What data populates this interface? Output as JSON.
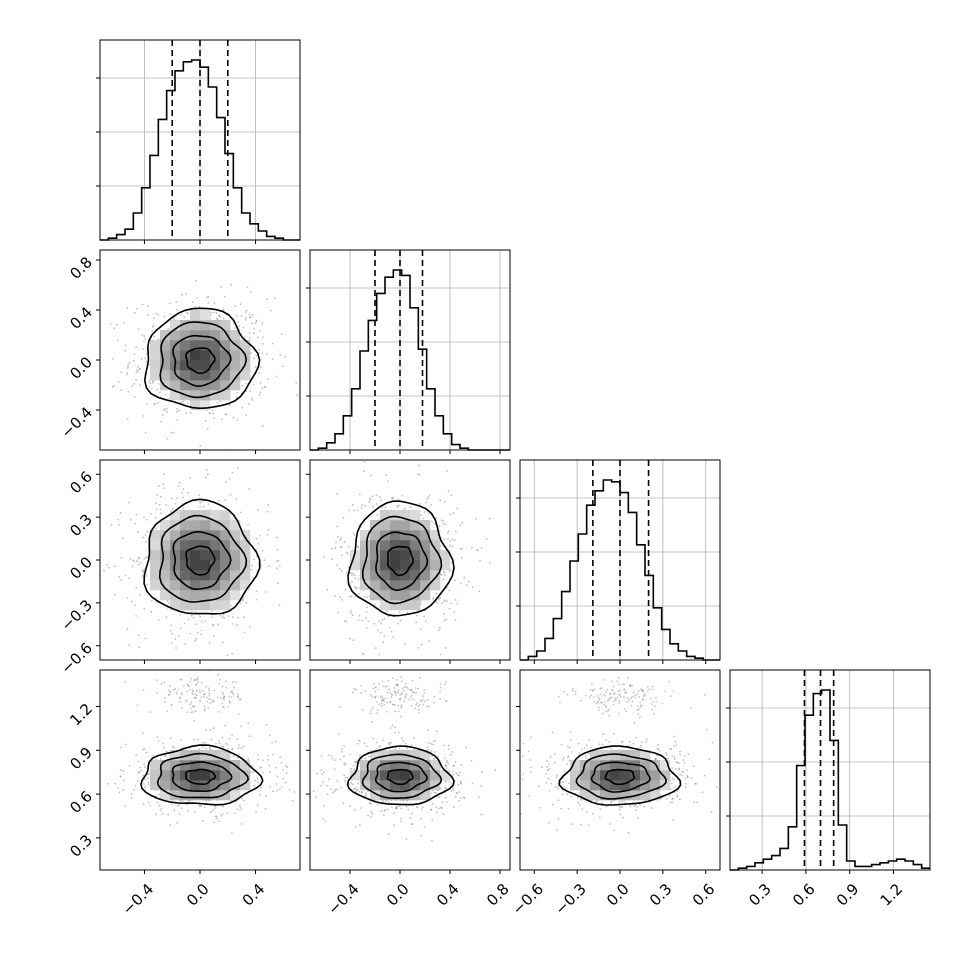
{
  "chart_data": {
    "type": "corner",
    "n_params": 4,
    "colors": {
      "line": "#000000",
      "grid": "#b0b0b0",
      "scatter": "#8c8c8c"
    },
    "params": [
      {
        "index": 0,
        "range": [
          -0.72,
          0.72
        ],
        "ticks": [
          -0.4,
          0.0,
          0.4
        ],
        "tick_labels": [
          "−0.4",
          "0.0",
          "0.4"
        ],
        "quantiles": [
          -0.2,
          0.0,
          0.2
        ]
      },
      {
        "index": 1,
        "range": [
          -0.72,
          0.88
        ],
        "ticks": [
          -0.4,
          0.0,
          0.4,
          0.8
        ],
        "tick_labels": [
          "−0.4",
          "0.0",
          "0.4",
          "0.8"
        ],
        "quantiles": [
          -0.2,
          0.0,
          0.18
        ]
      },
      {
        "index": 2,
        "range": [
          -0.7,
          0.7
        ],
        "ticks": [
          -0.6,
          -0.3,
          0.0,
          0.3,
          0.6
        ],
        "tick_labels": [
          "−0.6",
          "−0.3",
          "0.0",
          "0.3",
          "0.6"
        ],
        "quantiles": [
          -0.19,
          0.0,
          0.2
        ]
      },
      {
        "index": 3,
        "range": [
          0.08,
          1.45
        ],
        "ticks": [
          0.3,
          0.6,
          0.9,
          1.2
        ],
        "tick_labels": [
          "0.3",
          "0.6",
          "0.9",
          "1.2"
        ],
        "quantiles": [
          0.59,
          0.7,
          0.79
        ]
      }
    ],
    "histograms": [
      {
        "param": 0,
        "bin_edges": [
          -0.72,
          -0.66,
          -0.6,
          -0.54,
          -0.48,
          -0.42,
          -0.36,
          -0.3,
          -0.24,
          -0.18,
          -0.12,
          -0.06,
          0.0,
          0.06,
          0.12,
          0.18,
          0.24,
          0.3,
          0.36,
          0.42,
          0.48,
          0.54,
          0.6,
          0.66,
          0.72
        ],
        "counts": [
          0.0,
          0.01,
          0.03,
          0.06,
          0.15,
          0.29,
          0.47,
          0.67,
          0.83,
          0.94,
          0.99,
          1.0,
          0.96,
          0.85,
          0.68,
          0.48,
          0.29,
          0.15,
          0.09,
          0.05,
          0.02,
          0.01,
          0.0,
          0.0
        ]
      },
      {
        "param": 1,
        "bin_edges": [
          -0.72,
          -0.6533,
          -0.5867,
          -0.52,
          -0.4533,
          -0.3867,
          -0.32,
          -0.2533,
          -0.1867,
          -0.12,
          -0.0533,
          0.0133,
          0.08,
          0.1467,
          0.2133,
          0.28,
          0.3467,
          0.4133,
          0.48,
          0.5467,
          0.6133,
          0.68,
          0.7467,
          0.8133,
          0.88
        ],
        "counts": [
          0.0,
          0.01,
          0.04,
          0.09,
          0.19,
          0.34,
          0.55,
          0.72,
          0.87,
          0.96,
          1.0,
          0.97,
          0.79,
          0.56,
          0.34,
          0.19,
          0.09,
          0.03,
          0.01,
          0.0,
          0.0,
          0.0,
          0.0,
          0.0
        ]
      },
      {
        "param": 2,
        "bin_edges": [
          -0.7,
          -0.6417,
          -0.5833,
          -0.525,
          -0.4667,
          -0.4083,
          -0.35,
          -0.2917,
          -0.2333,
          -0.175,
          -0.1167,
          -0.0583,
          0.0,
          0.0583,
          0.1167,
          0.175,
          0.2333,
          0.2917,
          0.35,
          0.4083,
          0.4667,
          0.525,
          0.5833,
          0.6417,
          0.7
        ],
        "counts": [
          0.0,
          0.02,
          0.05,
          0.12,
          0.23,
          0.38,
          0.55,
          0.7,
          0.86,
          0.94,
          1.0,
          0.99,
          0.93,
          0.82,
          0.64,
          0.47,
          0.29,
          0.17,
          0.09,
          0.05,
          0.02,
          0.01,
          0.0,
          0.0
        ]
      },
      {
        "param": 3,
        "bin_edges": [
          0.08,
          0.1371,
          0.1942,
          0.2513,
          0.3083,
          0.3654,
          0.4225,
          0.4796,
          0.5367,
          0.5938,
          0.6508,
          0.7079,
          0.765,
          0.8221,
          0.8792,
          0.9363,
          0.9933,
          1.0504,
          1.1075,
          1.1646,
          1.2217,
          1.2788,
          1.3358,
          1.3929,
          1.45
        ],
        "counts": [
          0.0,
          0.01,
          0.02,
          0.04,
          0.06,
          0.08,
          0.12,
          0.24,
          0.58,
          0.86,
          0.98,
          1.0,
          0.72,
          0.25,
          0.05,
          0.02,
          0.02,
          0.03,
          0.04,
          0.05,
          0.06,
          0.05,
          0.03,
          0.01
        ]
      }
    ],
    "pairs": [
      {
        "x": 0,
        "y": 1,
        "center": [
          0.0,
          0.0
        ],
        "sigma": [
          0.2,
          0.2
        ],
        "rho": 0.0
      },
      {
        "x": 0,
        "y": 2,
        "center": [
          0.0,
          0.0
        ],
        "sigma": [
          0.2,
          0.2
        ],
        "rho": 0.0
      },
      {
        "x": 1,
        "y": 2,
        "center": [
          0.0,
          0.0
        ],
        "sigma": [
          0.2,
          0.2
        ],
        "rho": 0.0
      },
      {
        "x": 0,
        "y": 3,
        "center": [
          0.0,
          0.72
        ],
        "sigma": [
          0.21,
          0.1
        ],
        "rho": 0.0,
        "secondary_cluster": [
          0.0,
          1.27
        ]
      },
      {
        "x": 1,
        "y": 3,
        "center": [
          0.0,
          0.72
        ],
        "sigma": [
          0.2,
          0.1
        ],
        "rho": 0.0,
        "secondary_cluster": [
          0.0,
          1.27
        ]
      },
      {
        "x": 2,
        "y": 3,
        "center": [
          0.0,
          0.72
        ],
        "sigma": [
          0.2,
          0.1
        ],
        "rho": 0.0,
        "secondary_cluster": [
          0.0,
          1.27
        ]
      }
    ],
    "contour_levels_sigma": [
      0.5,
      1.0,
      1.5,
      2.0
    ],
    "grid": true,
    "legend": "none"
  }
}
